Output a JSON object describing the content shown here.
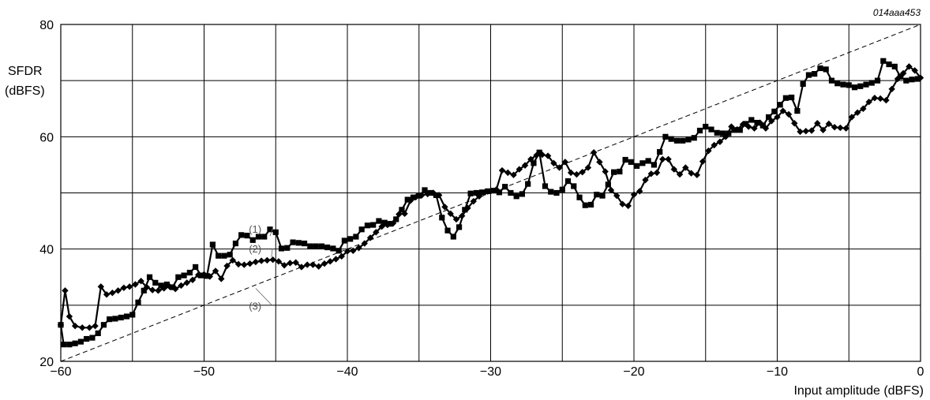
{
  "figure_code": "014aaa453",
  "chart_data": {
    "type": "line",
    "ylabel": [
      "SFDR",
      "(dBFS)"
    ],
    "xlabel": "Input amplitude (dBFS)",
    "xlim": [
      -60,
      0
    ],
    "ylim": [
      20,
      80
    ],
    "x_ticks": [
      -60,
      -50,
      -40,
      -30,
      -20,
      -10,
      0
    ],
    "x_tick_labels": [
      "−60",
      "−50",
      "−40",
      "−30",
      "−20",
      "−10",
      "0"
    ],
    "y_ticks": [
      20,
      40,
      60,
      80
    ],
    "y_tick_labels": [
      "20",
      "40",
      "60",
      "80"
    ],
    "grid": true,
    "series": [
      {
        "name": "(1)",
        "marker": "square",
        "points": [
          [
            -60,
            26.5
          ],
          [
            -59.8,
            23
          ],
          [
            -59.4,
            23
          ],
          [
            -59,
            23.2
          ],
          [
            -58.6,
            23.5
          ],
          [
            -58.2,
            24
          ],
          [
            -57.8,
            24.2
          ],
          [
            -57.4,
            25
          ],
          [
            -57,
            26.5
          ],
          [
            -56.6,
            27.5
          ],
          [
            -56.2,
            27.6
          ],
          [
            -55.8,
            27.8
          ],
          [
            -55.4,
            28
          ],
          [
            -55,
            28.3
          ],
          [
            -54.6,
            30.5
          ],
          [
            -54.2,
            32.6
          ],
          [
            -53.8,
            35
          ],
          [
            -53.4,
            34
          ],
          [
            -53,
            33.5
          ],
          [
            -52.6,
            33.7
          ],
          [
            -52.2,
            33.2
          ],
          [
            -51.8,
            35
          ],
          [
            -51.4,
            35.3
          ],
          [
            -51,
            35.8
          ],
          [
            -50.6,
            36.8
          ],
          [
            -50.2,
            35.3
          ],
          [
            -49.8,
            35.2
          ],
          [
            -49.4,
            40.8
          ],
          [
            -49,
            38.8
          ],
          [
            -48.6,
            38.8
          ],
          [
            -48.2,
            39
          ],
          [
            -47.8,
            41
          ],
          [
            -47.4,
            42.5
          ],
          [
            -47,
            42.4
          ],
          [
            -46.6,
            41.6
          ],
          [
            -46.2,
            42.2
          ],
          [
            -45.8,
            42.2
          ],
          [
            -45.4,
            43.5
          ],
          [
            -45,
            43
          ],
          [
            -44.6,
            40.1
          ],
          [
            -44.2,
            40.2
          ],
          [
            -43.8,
            41.2
          ],
          [
            -43.4,
            41.1
          ],
          [
            -43,
            41
          ],
          [
            -42.6,
            40.5
          ],
          [
            -42.2,
            40.5
          ],
          [
            -41.8,
            40.5
          ],
          [
            -41.4,
            40.3
          ],
          [
            -41,
            40.1
          ],
          [
            -40.6,
            39.7
          ],
          [
            -40.2,
            41.5
          ],
          [
            -39.8,
            41.8
          ],
          [
            -39.4,
            42.2
          ],
          [
            -39,
            43.5
          ],
          [
            -38.6,
            44.2
          ],
          [
            -38.2,
            44.3
          ],
          [
            -37.8,
            45
          ],
          [
            -37.4,
            44.7
          ],
          [
            -37,
            44.5
          ],
          [
            -36.6,
            45.3
          ],
          [
            -36.2,
            47
          ],
          [
            -35.8,
            48.8
          ],
          [
            -35.4,
            49.2
          ],
          [
            -35,
            49.5
          ],
          [
            -34.6,
            50.5
          ],
          [
            -34.2,
            50
          ],
          [
            -33.8,
            49.6
          ],
          [
            -33.4,
            45.6
          ],
          [
            -33,
            43.3
          ],
          [
            -32.6,
            42.2
          ],
          [
            -32.2,
            43.9
          ],
          [
            -31.8,
            47
          ],
          [
            -31.4,
            49.9
          ],
          [
            -31,
            50
          ],
          [
            -30.6,
            50.1
          ],
          [
            -30.2,
            50.3
          ],
          [
            -29.8,
            50.4
          ],
          [
            -29.4,
            50.1
          ],
          [
            -29,
            51.1
          ],
          [
            -28.6,
            50
          ],
          [
            -28.2,
            49.4
          ],
          [
            -27.8,
            49.8
          ],
          [
            -27.4,
            51.6
          ],
          [
            -27,
            55.3
          ],
          [
            -26.6,
            57.2
          ],
          [
            -26.2,
            51.2
          ],
          [
            -25.8,
            50.2
          ],
          [
            -25.4,
            50
          ],
          [
            -25,
            50.6
          ],
          [
            -24.6,
            52.1
          ],
          [
            -24.2,
            51.2
          ],
          [
            -23.8,
            49.2
          ],
          [
            -23.4,
            47.8
          ],
          [
            -23,
            47.9
          ],
          [
            -22.6,
            49.7
          ],
          [
            -22.2,
            49.5
          ],
          [
            -21.8,
            51.5
          ],
          [
            -21.4,
            53.7
          ],
          [
            -21,
            53.8
          ],
          [
            -20.6,
            55.9
          ],
          [
            -20.2,
            55.5
          ],
          [
            -19.8,
            54.8
          ],
          [
            -19.4,
            55.3
          ],
          [
            -19,
            55.7
          ],
          [
            -18.6,
            55
          ],
          [
            -18.2,
            57.3
          ],
          [
            -17.8,
            60
          ],
          [
            -17.4,
            59.6
          ],
          [
            -17,
            59.3
          ],
          [
            -16.6,
            59.3
          ],
          [
            -16.2,
            59.5
          ],
          [
            -15.8,
            59.8
          ],
          [
            -15.4,
            61.1
          ],
          [
            -15,
            61.8
          ],
          [
            -14.6,
            61.3
          ],
          [
            -14.2,
            60.7
          ],
          [
            -13.8,
            60.6
          ],
          [
            -13.4,
            60.6
          ],
          [
            -13,
            61.2
          ],
          [
            -12.6,
            61.2
          ],
          [
            -12.2,
            62.3
          ],
          [
            -11.8,
            63
          ],
          [
            -11.4,
            62.5
          ],
          [
            -11,
            62
          ],
          [
            -10.6,
            63.5
          ],
          [
            -10.2,
            64.5
          ],
          [
            -9.8,
            65.7
          ],
          [
            -9.4,
            66.9
          ],
          [
            -9,
            67
          ],
          [
            -8.6,
            64.6
          ],
          [
            -8.2,
            69.4
          ],
          [
            -7.8,
            71
          ],
          [
            -7.4,
            71.2
          ],
          [
            -7,
            72.2
          ],
          [
            -6.6,
            72
          ],
          [
            -6.2,
            70
          ],
          [
            -5.8,
            69.5
          ],
          [
            -5.4,
            69.3
          ],
          [
            -5,
            69.2
          ],
          [
            -4.6,
            68.8
          ],
          [
            -4.2,
            69
          ],
          [
            -3.8,
            69.3
          ],
          [
            -3.4,
            69.6
          ],
          [
            -3,
            70
          ],
          [
            -2.6,
            73.5
          ],
          [
            -2.2,
            72.9
          ],
          [
            -1.8,
            72.5
          ],
          [
            -1.4,
            70.7
          ],
          [
            -1,
            70
          ],
          [
            -0.6,
            70.2
          ],
          [
            -0.2,
            70.3
          ]
        ]
      },
      {
        "name": "(2)",
        "marker": "diamond",
        "points": [
          [
            -60,
            26.5
          ],
          [
            -59.7,
            32.6
          ],
          [
            -59.4,
            28
          ],
          [
            -59,
            26.3
          ],
          [
            -58.5,
            26
          ],
          [
            -58,
            26
          ],
          [
            -57.6,
            26.3
          ],
          [
            -57.2,
            33.3
          ],
          [
            -56.8,
            31.9
          ],
          [
            -56.4,
            32.2
          ],
          [
            -56,
            32.6
          ],
          [
            -55.6,
            33.1
          ],
          [
            -55.2,
            33.3
          ],
          [
            -54.8,
            33.7
          ],
          [
            -54.4,
            34.3
          ],
          [
            -54,
            33.2
          ],
          [
            -53.6,
            32.7
          ],
          [
            -53.2,
            32.6
          ],
          [
            -52.8,
            33
          ],
          [
            -52.4,
            33.3
          ],
          [
            -52,
            32.9
          ],
          [
            -51.6,
            33.5
          ],
          [
            -51.2,
            34
          ],
          [
            -50.8,
            34.5
          ],
          [
            -50.4,
            35.4
          ],
          [
            -50,
            35.5
          ],
          [
            -49.6,
            35.1
          ],
          [
            -49.2,
            36.1
          ],
          [
            -48.8,
            34.7
          ],
          [
            -48.4,
            37
          ],
          [
            -48,
            38
          ],
          [
            -47.6,
            37.3
          ],
          [
            -47.2,
            37.2
          ],
          [
            -46.8,
            37.4
          ],
          [
            -46.4,
            37.7
          ],
          [
            -46,
            37.9
          ],
          [
            -45.6,
            38
          ],
          [
            -45.2,
            38.1
          ],
          [
            -44.8,
            37.8
          ],
          [
            -44.4,
            37.1
          ],
          [
            -44,
            37.5
          ],
          [
            -43.6,
            37.6
          ],
          [
            -43.2,
            36.8
          ],
          [
            -42.8,
            37.2
          ],
          [
            -42.4,
            37.2
          ],
          [
            -42,
            36.9
          ],
          [
            -41.6,
            37.4
          ],
          [
            -41.2,
            37.8
          ],
          [
            -40.8,
            38.2
          ],
          [
            -40.4,
            38.7
          ],
          [
            -40,
            39.6
          ],
          [
            -39.6,
            39.7
          ],
          [
            -39.2,
            40.2
          ],
          [
            -38.8,
            41
          ],
          [
            -38.4,
            42
          ],
          [
            -38,
            43
          ],
          [
            -37.6,
            44
          ],
          [
            -37.2,
            44.3
          ],
          [
            -36.8,
            44.6
          ],
          [
            -36.4,
            46.2
          ],
          [
            -36,
            46.3
          ],
          [
            -35.6,
            48.6
          ],
          [
            -35.2,
            49.3
          ],
          [
            -34.8,
            49.6
          ],
          [
            -34.4,
            49.8
          ],
          [
            -34,
            50
          ],
          [
            -33.6,
            49.6
          ],
          [
            -33.2,
            47.5
          ],
          [
            -32.8,
            46.3
          ],
          [
            -32.4,
            45.3
          ],
          [
            -32,
            45.9
          ],
          [
            -31.6,
            47.3
          ],
          [
            -31.2,
            48.5
          ],
          [
            -30.8,
            49.4
          ],
          [
            -30.4,
            50.1
          ],
          [
            -30,
            50.3
          ],
          [
            -29.6,
            50.6
          ],
          [
            -29.2,
            54
          ],
          [
            -28.8,
            53.6
          ],
          [
            -28.4,
            53.2
          ],
          [
            -28,
            54.2
          ],
          [
            -27.6,
            54.9
          ],
          [
            -27.2,
            56
          ],
          [
            -26.8,
            56.7
          ],
          [
            -26.4,
            56.8
          ],
          [
            -26,
            56.6
          ],
          [
            -25.6,
            55.3
          ],
          [
            -25.2,
            54.5
          ],
          [
            -24.8,
            55.5
          ],
          [
            -24.4,
            53.6
          ],
          [
            -24,
            53.3
          ],
          [
            -23.6,
            53.7
          ],
          [
            -23.2,
            54.5
          ],
          [
            -22.8,
            57.2
          ],
          [
            -22.4,
            55.5
          ],
          [
            -22,
            53.8
          ],
          [
            -21.6,
            50.5
          ],
          [
            -21.2,
            49.5
          ],
          [
            -20.8,
            48
          ],
          [
            -20.4,
            47.7
          ],
          [
            -20,
            49.7
          ],
          [
            -19.6,
            50.3
          ],
          [
            -19.2,
            52.3
          ],
          [
            -18.8,
            53.4
          ],
          [
            -18.4,
            53.6
          ],
          [
            -18,
            56
          ],
          [
            -17.6,
            56
          ],
          [
            -17.2,
            54.2
          ],
          [
            -16.8,
            53.3
          ],
          [
            -16.4,
            54.5
          ],
          [
            -16,
            53.5
          ],
          [
            -15.6,
            53.2
          ],
          [
            -15.2,
            55.6
          ],
          [
            -14.8,
            57.5
          ],
          [
            -14.4,
            58.5
          ],
          [
            -14,
            59.1
          ],
          [
            -13.6,
            60
          ],
          [
            -13.2,
            61.8
          ],
          [
            -12.8,
            61.3
          ],
          [
            -12.4,
            62.2
          ],
          [
            -12,
            61.8
          ],
          [
            -11.6,
            61.5
          ],
          [
            -11.2,
            62.5
          ],
          [
            -10.8,
            61.5
          ],
          [
            -10.4,
            62.8
          ],
          [
            -10,
            63.5
          ],
          [
            -9.6,
            64.6
          ],
          [
            -9.2,
            64
          ],
          [
            -8.8,
            62.4
          ],
          [
            -8.4,
            60.9
          ],
          [
            -8,
            61
          ],
          [
            -7.6,
            61.1
          ],
          [
            -7.2,
            62.4
          ],
          [
            -6.8,
            61.2
          ],
          [
            -6.4,
            62.3
          ],
          [
            -6,
            61.7
          ],
          [
            -5.6,
            61.6
          ],
          [
            -5.2,
            61.5
          ],
          [
            -4.8,
            63.5
          ],
          [
            -4.4,
            64.3
          ],
          [
            -4,
            65
          ],
          [
            -3.6,
            66.2
          ],
          [
            -3.2,
            66.9
          ],
          [
            -2.8,
            66.8
          ],
          [
            -2.4,
            66.5
          ],
          [
            -2,
            68.5
          ],
          [
            -1.6,
            70.3
          ],
          [
            -1.2,
            71.3
          ],
          [
            -0.8,
            72.5
          ],
          [
            -0.4,
            71.8
          ],
          [
            0,
            70.5
          ]
        ]
      },
      {
        "name": "(3)",
        "style": "dashed",
        "points": [
          [
            -60,
            20
          ],
          [
            0,
            80
          ]
        ]
      }
    ]
  }
}
